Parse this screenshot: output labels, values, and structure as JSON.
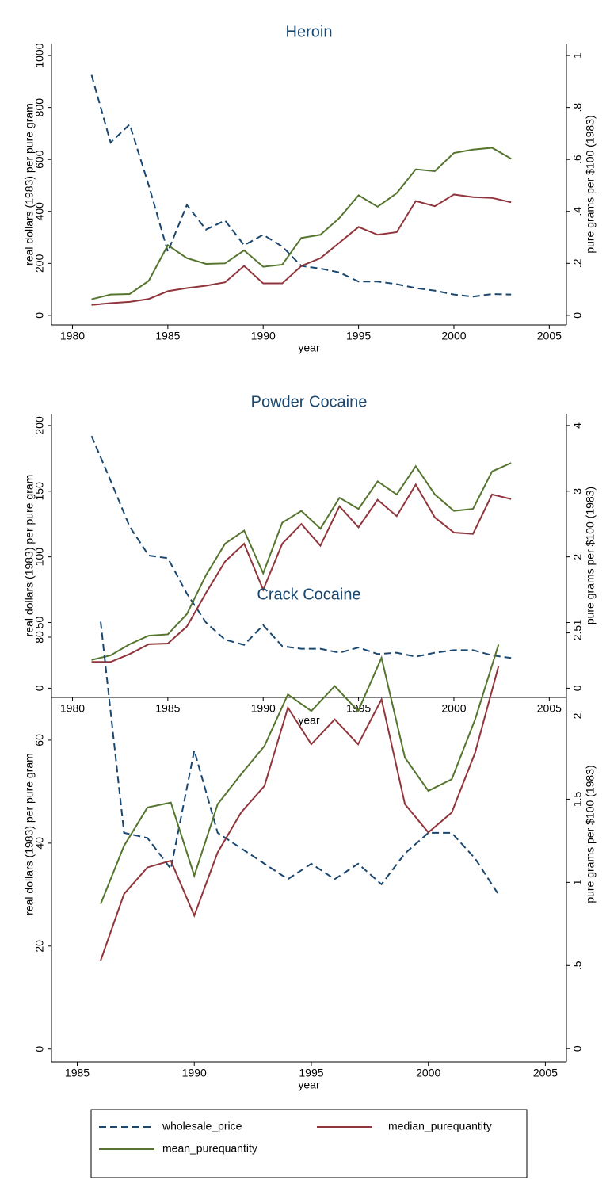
{
  "chart_data": [
    {
      "type": "line",
      "title": "Heroin",
      "xlabel": "year",
      "ylabel": "real dollars (1983) per pure gram",
      "y2label": "pure grams per $100 (1983)",
      "x": [
        1981,
        1982,
        1983,
        1984,
        1985,
        1986,
        1987,
        1988,
        1989,
        1990,
        1991,
        1992,
        1993,
        1994,
        1995,
        1996,
        1997,
        1998,
        1999,
        2000,
        2001,
        2002,
        2003
      ],
      "xlim": [
        1978.9,
        2005.9
      ],
      "xticks": [
        1980,
        1985,
        1990,
        1995,
        2000,
        2005
      ],
      "ylim": [
        -37,
        1046
      ],
      "yticks": [
        0,
        200,
        400,
        600,
        800,
        1000
      ],
      "y2lim": [
        -0.037,
        1.046
      ],
      "y2ticks": [
        0,
        {
          "value": 0.2,
          "label": ".2"
        },
        {
          "value": 0.4,
          "label": ".4"
        },
        {
          "value": 0.6,
          "label": ".6"
        },
        {
          "value": 0.8,
          "label": ".8"
        },
        1
      ],
      "legend": "bottom",
      "series": [
        {
          "name": "wholesale_price",
          "color": "#1a476f",
          "line_style": "dashed",
          "values": [
            925,
            665,
            735,
            500,
            245,
            425,
            330,
            365,
            270,
            310,
            265,
            190,
            180,
            165,
            130,
            130,
            120,
            105,
            95,
            80,
            72,
            82,
            80
          ]
        },
        {
          "name": "median_purequantity",
          "color": "#90353b",
          "axis": "y2",
          "values": [
            0.04,
            0.047,
            0.052,
            0.063,
            0.093,
            0.105,
            0.114,
            0.127,
            0.19,
            0.123,
            0.123,
            0.19,
            0.22,
            0.28,
            0.34,
            0.31,
            0.32,
            0.44,
            0.42,
            0.465,
            0.455,
            0.452,
            0.435
          ]
        },
        {
          "name": "mean_purequantity",
          "color": "#55752f",
          "axis": "y2",
          "values": [
            0.062,
            0.08,
            0.082,
            0.133,
            0.27,
            0.22,
            0.198,
            0.2,
            0.25,
            0.187,
            0.195,
            0.298,
            0.31,
            0.375,
            0.462,
            0.418,
            0.47,
            0.562,
            0.555,
            0.625,
            0.638,
            0.645,
            0.603
          ]
        }
      ]
    },
    {
      "type": "line",
      "title": "Powder Cocaine",
      "xlabel": "year",
      "ylabel": "real dollars (1983) per pure gram",
      "y2label": "pure grams per $100 (1983)",
      "x": [
        1981,
        1982,
        1983,
        1984,
        1985,
        1986,
        1987,
        1988,
        1989,
        1990,
        1991,
        1992,
        1993,
        1994,
        1995,
        1996,
        1997,
        1998,
        1999,
        2000,
        2001,
        2002,
        2003
      ],
      "xlim": [
        1978.9,
        2005.9
      ],
      "xticks": [
        1980,
        1985,
        1990,
        1995,
        2000,
        2005
      ],
      "ylim": [
        -7,
        209
      ],
      "yticks": [
        0,
        50,
        100,
        150,
        200
      ],
      "y2lim": [
        -0.14,
        4.18
      ],
      "y2ticks": [
        0,
        1,
        2,
        3,
        4
      ],
      "series": [
        {
          "name": "wholesale_price",
          "color": "#1a476f",
          "line_style": "dashed",
          "values": [
            192,
            158,
            123,
            101,
            99,
            72,
            50,
            37,
            33,
            48,
            32,
            30,
            30,
            27,
            31,
            26,
            27,
            24,
            27,
            29,
            29,
            25,
            23
          ]
        },
        {
          "name": "median_purequantity",
          "color": "#90353b",
          "axis": "y2",
          "values": [
            0.4,
            0.4,
            0.52,
            0.67,
            0.68,
            0.94,
            1.45,
            1.93,
            2.2,
            1.5,
            2.2,
            2.5,
            2.17,
            2.77,
            2.45,
            2.87,
            2.62,
            3.1,
            2.6,
            2.37,
            2.35,
            2.95,
            2.88
          ]
        },
        {
          "name": "mean_purequantity",
          "color": "#55752f",
          "axis": "y2",
          "values": [
            0.43,
            0.5,
            0.67,
            0.8,
            0.82,
            1.13,
            1.72,
            2.2,
            2.4,
            1.75,
            2.52,
            2.7,
            2.43,
            2.9,
            2.73,
            3.15,
            2.95,
            3.38,
            2.95,
            2.7,
            2.73,
            3.3,
            3.43
          ]
        }
      ]
    },
    {
      "type": "line",
      "title": "Crack Cocaine",
      "xlabel": "year",
      "ylabel": "real dollars (1983) per pure gram",
      "y2label": "pure grams per $100 (1983)",
      "x": [
        1986,
        1987,
        1988,
        1989,
        1990,
        1991,
        1992,
        1993,
        1994,
        1995,
        1996,
        1997,
        1998,
        1999,
        2000,
        2001,
        2002,
        2003
      ],
      "xlim": [
        1983.9,
        2005.9
      ],
      "xticks": [
        1985,
        1990,
        1995,
        2000,
        2005
      ],
      "ylim": [
        -2.5,
        86
      ],
      "yticks": [
        0,
        20,
        40,
        60,
        80
      ],
      "y2lim": [
        -0.08,
        2.66
      ],
      "y2ticks": [
        0,
        {
          "value": 0.5,
          "label": ".5"
        },
        1,
        {
          "value": 1.5,
          "label": "1.5"
        },
        2,
        {
          "value": 2.5,
          "label": "2.5"
        }
      ],
      "series": [
        {
          "name": "wholesale_price",
          "color": "#1a476f",
          "line_style": "dashed",
          "values": [
            83,
            42,
            41,
            35,
            58,
            42,
            39,
            36,
            33,
            36,
            33,
            36,
            32,
            38,
            42,
            42,
            37,
            30
          ]
        },
        {
          "name": "median_purequantity",
          "color": "#90353b",
          "axis": "y2",
          "values": [
            0.53,
            0.93,
            1.09,
            1.13,
            0.8,
            1.18,
            1.42,
            1.58,
            2.05,
            1.83,
            1.98,
            1.83,
            2.1,
            1.47,
            1.3,
            1.42,
            1.78,
            2.3
          ]
        },
        {
          "name": "mean_purequantity",
          "color": "#55752f",
          "axis": "y2",
          "values": [
            0.87,
            1.22,
            1.45,
            1.48,
            1.04,
            1.47,
            1.65,
            1.82,
            2.13,
            2.03,
            2.18,
            2.03,
            2.35,
            1.75,
            1.55,
            1.62,
            1.98,
            2.43
          ]
        }
      ]
    }
  ]
}
